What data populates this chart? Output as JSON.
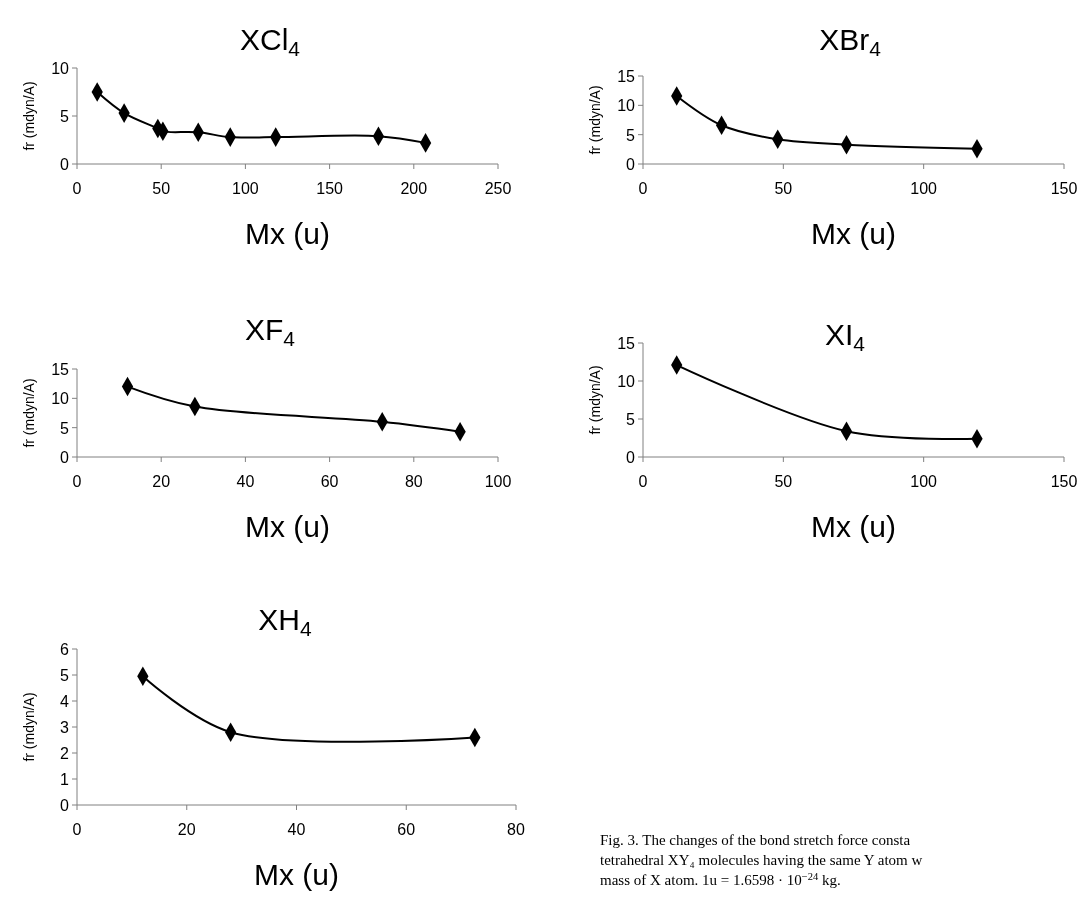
{
  "chart_data": [
    {
      "type": "line",
      "title": "XCl$_{4}$",
      "xlabel": "Mx (u)",
      "ylabel": "fr (mdyn/A)",
      "marker": "diamond",
      "line_style": "solid",
      "xlim": [
        0,
        250
      ],
      "xticks": [
        0,
        50,
        100,
        150,
        200,
        250
      ],
      "ylim": [
        0,
        10
      ],
      "yticks": [
        0,
        5,
        10
      ],
      "series": [
        {
          "color": "#000000",
          "x": [
            12,
            28,
            48,
            51,
            72,
            91,
            118,
            179,
            207
          ],
          "values": [
            7.5,
            5.3,
            3.7,
            3.4,
            3.3,
            2.8,
            2.8,
            2.9,
            2.2
          ]
        }
      ]
    },
    {
      "type": "line",
      "title": "XBr$_{4}$",
      "xlabel": "Mx (u)",
      "ylabel": "fr (mdyn/A)",
      "marker": "diamond",
      "line_style": "solid",
      "xlim": [
        0,
        150
      ],
      "xticks": [
        0,
        50,
        100,
        150
      ],
      "ylim": [
        0,
        15
      ],
      "yticks": [
        0,
        5,
        10,
        15
      ],
      "series": [
        {
          "color": "#000000",
          "x": [
            12,
            28,
            48,
            72.5,
            119
          ],
          "values": [
            11.6,
            6.6,
            4.2,
            3.3,
            2.6
          ]
        }
      ]
    },
    {
      "type": "line",
      "title": "XF$_{4}$",
      "xlabel": "Mx (u)",
      "ylabel": "fr (mdyn/A)",
      "marker": "diamond",
      "line_style": "solid",
      "xlim": [
        0,
        100
      ],
      "xticks": [
        0,
        20,
        40,
        60,
        80,
        100
      ],
      "ylim": [
        0,
        15
      ],
      "yticks": [
        0,
        5,
        10,
        15
      ],
      "series": [
        {
          "color": "#000000",
          "x": [
            12,
            28,
            72.5,
            91
          ],
          "values": [
            12,
            8.6,
            6,
            4.3
          ]
        }
      ]
    },
    {
      "type": "line",
      "title": "XI$_{4}$",
      "xlabel": "Mx (u)",
      "ylabel": "fr (mdyn/A)",
      "marker": "diamond",
      "line_style": "solid",
      "xlim": [
        0,
        150
      ],
      "xticks": [
        0,
        50,
        100,
        150
      ],
      "ylim": [
        0,
        15
      ],
      "yticks": [
        0,
        5,
        10,
        15
      ],
      "series": [
        {
          "color": "#000000",
          "x": [
            12,
            72.5,
            119
          ],
          "values": [
            12.1,
            3.4,
            2.4
          ]
        }
      ]
    },
    {
      "type": "line",
      "title": "XH$_{4}$",
      "xlabel": "Mx (u)",
      "ylabel": "fr (mdyn/A)",
      "marker": "diamond",
      "line_style": "solid",
      "xlim": [
        0,
        80
      ],
      "xticks": [
        0,
        20,
        40,
        60,
        80
      ],
      "ylim": [
        0,
        6
      ],
      "yticks": [
        0,
        1,
        2,
        3,
        4,
        5,
        6
      ],
      "series": [
        {
          "color": "#000000",
          "x": [
            12,
            28,
            72.5
          ],
          "values": [
            4.95,
            2.8,
            2.6
          ]
        }
      ],
      "annotations": [
        "Fig. 3. The changes of the bond stretch force consta",
        "tetrahedral XY₄ molecules having the same Y atom w",
        "mass of X atom. 1u = 1.6598 · 10$^{−24}$ kg."
      ]
    }
  ]
}
